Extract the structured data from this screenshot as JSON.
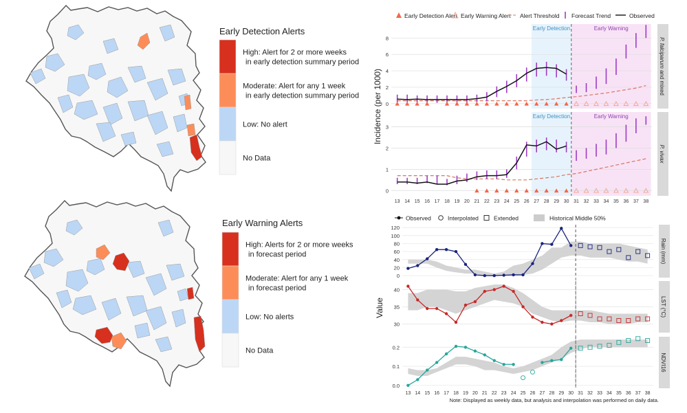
{
  "maps": {
    "detection": {
      "title": "Early Detection Alerts",
      "legend": [
        {
          "label": [
            "High: Alert for 2 or more weeks",
            "in early detection summary period"
          ],
          "color": "#d7301f"
        },
        {
          "label": [
            "Moderate: Alert for any 1 week",
            "in early detection summary period"
          ],
          "color": "#fc8d59"
        },
        {
          "label": [
            "Low: No alert"
          ],
          "color": "#bcd7f5"
        },
        {
          "label": [
            "No Data"
          ],
          "color": "#f7f7f7"
        }
      ]
    },
    "warning": {
      "title": "Early Warning Alerts",
      "legend": [
        {
          "label": [
            "High: Alerts for 2 or more weeks",
            "in forecast period"
          ],
          "color": "#d7301f"
        },
        {
          "label": [
            "Moderate: Alert for any 1 week",
            "in forecast period"
          ],
          "color": "#fc8d59"
        },
        {
          "label": [
            "Low: No alerts"
          ],
          "color": "#bcd7f5"
        },
        {
          "label": [
            "No Data"
          ],
          "color": "#f7f7f7"
        }
      ]
    }
  },
  "chart_data": [
    {
      "type": "line",
      "ylabel": "Incidence (per 1000)",
      "legend": [
        "Early Detection Alert",
        "Early Warning Alert",
        "Alert Threshold",
        "Forecast Trend",
        "Observed"
      ],
      "period_labels": {
        "detection": "Early Detection",
        "warning": "Early Warning"
      },
      "detection_weeks": [
        27,
        30
      ],
      "warning_weeks": [
        31,
        38
      ],
      "x": [
        13,
        14,
        15,
        16,
        17,
        18,
        19,
        20,
        21,
        22,
        23,
        24,
        25,
        26,
        27,
        28,
        29,
        30,
        31,
        32,
        33,
        34,
        35,
        36,
        37,
        38
      ],
      "panels": [
        {
          "strip": [
            "P. falciparum",
            " and mixed"
          ],
          "yticks": [
            0,
            2,
            4,
            6,
            8
          ],
          "ylim": [
            -0.6,
            9.7
          ],
          "observed": [
            0.55,
            0.5,
            0.55,
            0.5,
            0.5,
            0.5,
            0.5,
            0.5,
            0.6,
            0.8,
            1.5,
            2.1,
            2.8,
            3.7,
            4.3,
            4.4,
            4.3,
            3.6
          ],
          "forecast_ci": [
            [
              0.1,
              1.1
            ],
            [
              0.1,
              1.1
            ],
            [
              0.1,
              1.0
            ],
            [
              0.1,
              1.0
            ],
            [
              0.1,
              1.0
            ],
            [
              0.1,
              1.0
            ],
            [
              0.1,
              1.0
            ],
            [
              0.1,
              1.0
            ],
            [
              0.2,
              1.1
            ],
            [
              0.3,
              1.4
            ],
            [
              0.8,
              2.1
            ],
            [
              1.3,
              2.8
            ],
            [
              2.0,
              3.6
            ],
            [
              2.7,
              4.4
            ],
            [
              3.3,
              5.0
            ],
            [
              3.4,
              5.1
            ],
            [
              3.2,
              4.8
            ],
            [
              2.8,
              4.2
            ],
            [
              1.3,
              2.2
            ],
            [
              1.4,
              2.5
            ],
            [
              1.8,
              3.3
            ],
            [
              2.4,
              4.3
            ],
            [
              3.5,
              5.5
            ],
            [
              5.5,
              7.2
            ],
            [
              6.8,
              8.6
            ],
            [
              8.0,
              9.6
            ]
          ],
          "threshold": [
            0.35,
            0.35,
            0.35,
            0.35,
            0.35,
            0.35,
            0.35,
            0.35,
            0.35,
            0.35,
            0.35,
            0.35,
            0.35,
            0.35,
            0.45,
            0.5,
            0.6,
            0.75,
            0.85,
            1.0,
            1.15,
            1.3,
            1.5,
            1.7,
            1.9,
            2.2
          ],
          "detection_alert_weeks": [
            13,
            14,
            15,
            16,
            18,
            19,
            20,
            21,
            22,
            23,
            24,
            25,
            26,
            27,
            28,
            29,
            30
          ],
          "warning_alert_weeks": [
            31,
            32,
            33,
            34,
            35,
            36,
            37,
            38
          ]
        },
        {
          "strip": [
            "P. vivax"
          ],
          "yticks": [
            0,
            1,
            2,
            3
          ],
          "ylim": [
            -0.25,
            3.7
          ],
          "observed": [
            0.4,
            0.4,
            0.35,
            0.4,
            0.3,
            0.3,
            0.45,
            0.5,
            0.65,
            0.7,
            0.7,
            0.75,
            1.3,
            2.15,
            2.1,
            2.3,
            1.95,
            2.1
          ],
          "forecast_ci": [
            [
              0.3,
              0.6
            ],
            [
              0.3,
              0.6
            ],
            [
              0.3,
              0.6
            ],
            [
              0.35,
              0.7
            ],
            [
              0.3,
              0.7
            ],
            [
              0.25,
              0.55
            ],
            [
              0.3,
              0.7
            ],
            [
              0.4,
              0.8
            ],
            [
              0.5,
              0.9
            ],
            [
              0.55,
              0.95
            ],
            [
              0.55,
              0.95
            ],
            [
              0.6,
              1.0
            ],
            [
              1.0,
              1.6
            ],
            [
              1.6,
              2.3
            ],
            [
              1.8,
              2.4
            ],
            [
              1.9,
              2.5
            ],
            [
              1.8,
              2.4
            ],
            [
              1.8,
              2.3
            ],
            [
              1.4,
              1.9
            ],
            [
              1.5,
              2.0
            ],
            [
              1.6,
              2.2
            ],
            [
              1.7,
              2.4
            ],
            [
              2.0,
              2.7
            ],
            [
              2.3,
              3.1
            ],
            [
              2.7,
              3.4
            ],
            [
              3.1,
              3.5
            ]
          ],
          "threshold": [
            0.7,
            0.7,
            0.7,
            0.7,
            0.7,
            0.7,
            0.6,
            0.55,
            0.55,
            0.55,
            0.55,
            0.5,
            0.5,
            0.5,
            0.55,
            0.6,
            0.65,
            0.75,
            0.8,
            0.9,
            1.0,
            1.1,
            1.2,
            1.3,
            1.4,
            1.5
          ],
          "detection_alert_weeks": [
            21,
            22,
            23,
            24,
            25,
            26,
            27,
            28,
            29,
            30
          ],
          "warning_alert_weeks": [
            31,
            32,
            33,
            34,
            35,
            36,
            37,
            38
          ]
        }
      ]
    },
    {
      "type": "line",
      "ylabel": "Value",
      "legend": [
        "Observed",
        "Interpolated",
        "Extended",
        "Historical Middle 50%"
      ],
      "x": [
        13,
        14,
        15,
        16,
        17,
        18,
        19,
        20,
        21,
        22,
        23,
        24,
        25,
        26,
        27,
        28,
        29,
        30,
        31,
        32,
        33,
        34,
        35,
        36,
        37,
        38
      ],
      "panels": [
        {
          "strip": "Rain (mm)",
          "color": "#1a237e",
          "yticks": [
            0,
            20,
            40,
            60,
            80,
            100,
            120
          ],
          "ylim": [
            -5,
            127
          ],
          "observed": [
            [
              13,
              18
            ],
            [
              14,
              25
            ],
            [
              15,
              42
            ],
            [
              16,
              65
            ],
            [
              17,
              65
            ],
            [
              18,
              60
            ],
            [
              19,
              28
            ],
            [
              20,
              2
            ],
            [
              21,
              0
            ],
            [
              22,
              0
            ],
            [
              23,
              1
            ],
            [
              24,
              2
            ],
            [
              25,
              2
            ],
            [
              26,
              30
            ],
            [
              27,
              80
            ],
            [
              28,
              78
            ],
            [
              29,
              118
            ],
            [
              30,
              75
            ]
          ],
          "interpolated": [],
          "extended": [
            [
              31,
              75
            ],
            [
              32,
              72
            ],
            [
              33,
              70
            ],
            [
              34,
              60
            ],
            [
              35,
              65
            ],
            [
              36,
              45
            ],
            [
              37,
              60
            ],
            [
              38,
              50
            ]
          ],
          "band_low": [
            30,
            30,
            30,
            20,
            12,
            8,
            5,
            5,
            0,
            0,
            0,
            0,
            2,
            5,
            15,
            30,
            45,
            50,
            50,
            45,
            45,
            45,
            40,
            35,
            35,
            30
          ],
          "band_high": [
            40,
            40,
            40,
            35,
            25,
            20,
            15,
            15,
            10,
            5,
            10,
            25,
            30,
            40,
            50,
            70,
            70,
            85,
            85,
            80,
            80,
            80,
            80,
            75,
            70,
            65
          ]
        },
        {
          "strip": "LST (°C)",
          "color": "#c62828",
          "yticks": [
            30,
            35,
            40
          ],
          "ylim": [
            27.5,
            42.5
          ],
          "observed": [
            [
              13,
              41
            ],
            [
              14,
              37
            ],
            [
              15,
              34.5
            ],
            [
              16,
              34.5
            ],
            [
              17,
              33
            ],
            [
              18,
              30.5
            ],
            [
              19,
              35.5
            ],
            [
              20,
              36.5
            ],
            [
              21,
              39.5
            ],
            [
              22,
              40
            ],
            [
              23,
              41
            ],
            [
              24,
              39.5
            ],
            [
              25,
              35
            ],
            [
              26,
              32
            ],
            [
              27,
              30.5
            ],
            [
              28,
              30
            ],
            [
              29,
              31
            ],
            [
              30,
              32.5
            ]
          ],
          "interpolated": [],
          "extended": [
            [
              31,
              33
            ],
            [
              32,
              32.5
            ],
            [
              33,
              31.5
            ],
            [
              34,
              31.5
            ],
            [
              35,
              31
            ],
            [
              36,
              31
            ],
            [
              37,
              31.5
            ],
            [
              38,
              31.5
            ]
          ],
          "band_low": [
            34,
            34,
            35,
            35,
            34,
            33,
            34,
            35,
            36,
            37,
            36.5,
            36,
            35,
            33,
            32,
            31,
            30.5,
            31,
            31,
            30.5,
            30.5,
            30,
            30,
            30,
            30.5,
            30.5
          ],
          "band_high": [
            39,
            39,
            40,
            40,
            40,
            39.5,
            39.5,
            40.5,
            41,
            41.5,
            41.5,
            40.5,
            39,
            37,
            35,
            34,
            34,
            34,
            34,
            34,
            33.5,
            33,
            33,
            33,
            33,
            33
          ]
        },
        {
          "strip": "NDVI16",
          "color": "#26a69a",
          "yticks": [
            0.0,
            0.1,
            0.2
          ],
          "ylim": [
            -0.015,
            0.255
          ],
          "observed": [
            [
              13,
              0.0
            ],
            [
              14,
              0.03
            ],
            [
              15,
              0.08
            ],
            [
              16,
              0.12
            ],
            [
              17,
              0.165
            ],
            [
              18,
              0.205
            ],
            [
              19,
              0.2
            ],
            [
              20,
              0.18
            ],
            [
              21,
              0.16
            ],
            [
              22,
              0.13
            ],
            [
              23,
              0.11
            ],
            [
              24,
              0.11
            ],
            [
              27,
              0.12
            ],
            [
              28,
              0.13
            ],
            [
              29,
              0.135
            ],
            [
              30,
              0.195
            ]
          ],
          "interpolated": [
            [
              25,
              0.04
            ],
            [
              26,
              0.07
            ]
          ],
          "extended": [
            [
              31,
              0.195
            ],
            [
              32,
              0.2
            ],
            [
              33,
              0.205
            ],
            [
              34,
              0.21
            ],
            [
              35,
              0.225
            ],
            [
              36,
              0.235
            ],
            [
              37,
              0.245
            ],
            [
              38,
              0.235
            ]
          ],
          "band_low": [
            0.06,
            0.05,
            0.05,
            0.07,
            0.09,
            0.11,
            0.11,
            0.1,
            0.08,
            0.08,
            0.07,
            0.06,
            0.07,
            0.08,
            0.1,
            0.12,
            0.14,
            0.17,
            0.19,
            0.2,
            0.2,
            0.2,
            0.2,
            0.2,
            0.2,
            0.2
          ],
          "band_high": [
            0.09,
            0.08,
            0.08,
            0.09,
            0.12,
            0.15,
            0.15,
            0.14,
            0.13,
            0.12,
            0.1,
            0.09,
            0.1,
            0.12,
            0.14,
            0.16,
            0.2,
            0.23,
            0.24,
            0.24,
            0.24,
            0.24,
            0.24,
            0.24,
            0.24,
            0.24
          ]
        }
      ],
      "note": "Note: Displayed as weekly data, but analysis and interpolation was performed on daily data."
    }
  ]
}
